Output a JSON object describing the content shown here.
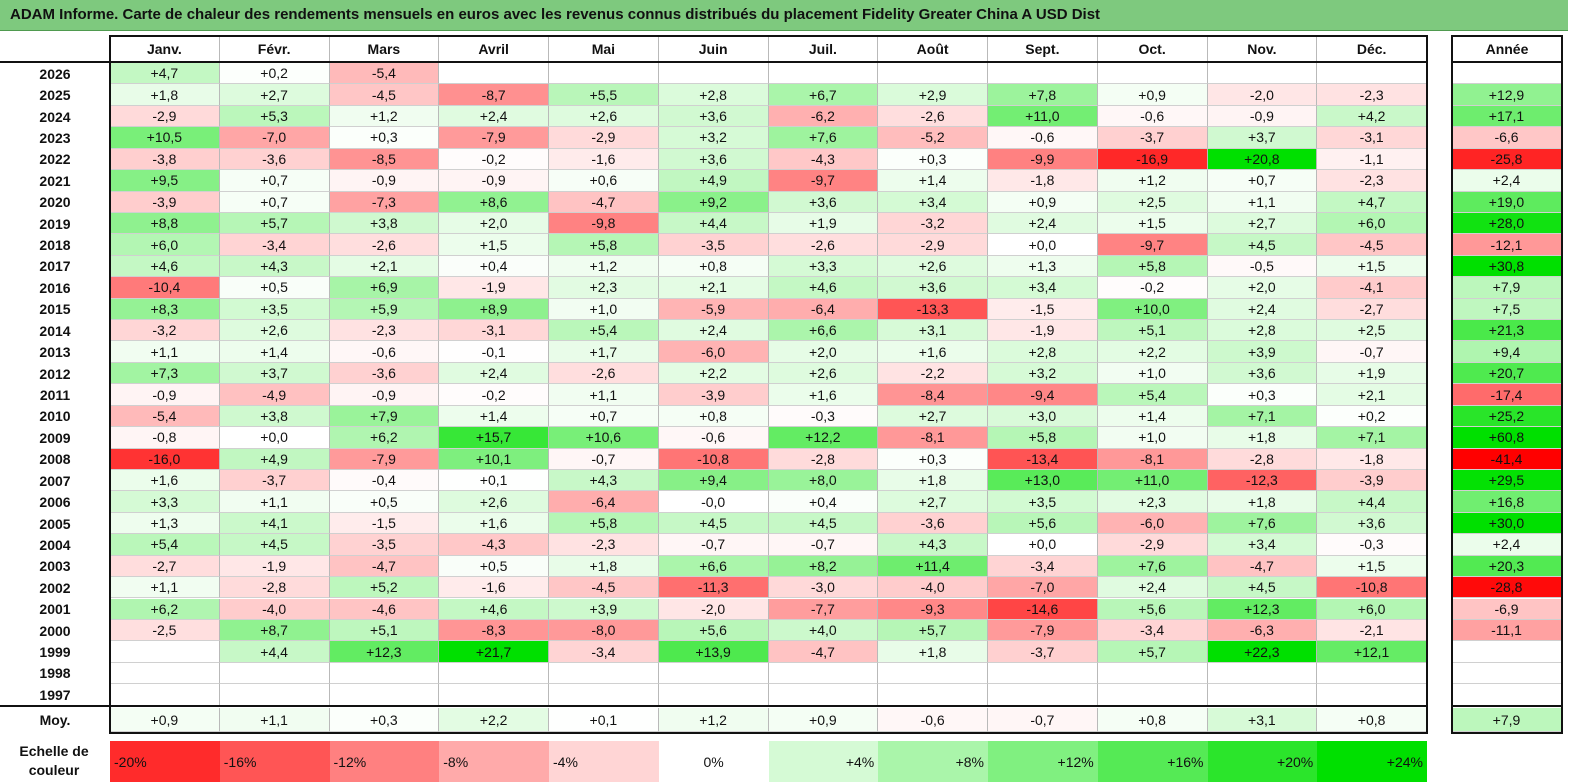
{
  "title": "ADAM Informe. Carte de chaleur des rendements mensuels en euros avec les revenus connus distribués du placement Fidelity Greater China A USD Dist",
  "chart_data": {
    "type": "heatmap",
    "months": [
      "Janv.",
      "Févr.",
      "Mars",
      "Avril",
      "Mai",
      "Juin",
      "Juil.",
      "Août",
      "Sept.",
      "Oct.",
      "Nov.",
      "Déc."
    ],
    "year_label": "Année",
    "avg_label": "Moy.",
    "rows": [
      {
        "year": "2026",
        "values": [
          "+4,7",
          "+0,2",
          "-5,4",
          "",
          "",
          "",
          "",
          "",
          "",
          "",
          "",
          ""
        ],
        "annual": ""
      },
      {
        "year": "2025",
        "values": [
          "+1,8",
          "+2,7",
          "-4,5",
          "-8,7",
          "+5,5",
          "+2,8",
          "+6,7",
          "+2,9",
          "+7,8",
          "+0,9",
          "-2,0",
          "-2,3"
        ],
        "annual": "+12,9"
      },
      {
        "year": "2024",
        "values": [
          "-2,9",
          "+5,3",
          "+1,2",
          "+2,4",
          "+2,6",
          "+3,6",
          "-6,2",
          "-2,6",
          "+11,0",
          "-0,6",
          "-0,9",
          "+4,2"
        ],
        "annual": "+17,1"
      },
      {
        "year": "2023",
        "values": [
          "+10,5",
          "-7,0",
          "+0,3",
          "-7,9",
          "-2,9",
          "+3,2",
          "+7,6",
          "-5,2",
          "-0,6",
          "-3,7",
          "+3,7",
          "-3,1"
        ],
        "annual": "-6,6"
      },
      {
        "year": "2022",
        "values": [
          "-3,8",
          "-3,6",
          "-8,5",
          "-0,2",
          "-1,6",
          "+3,6",
          "-4,3",
          "+0,3",
          "-9,9",
          "-16,9",
          "+20,8",
          "-1,1"
        ],
        "annual": "-25,8"
      },
      {
        "year": "2021",
        "values": [
          "+9,5",
          "+0,7",
          "-0,9",
          "-0,9",
          "+0,6",
          "+4,9",
          "-9,7",
          "+1,4",
          "-1,8",
          "+1,2",
          "+0,7",
          "-2,3"
        ],
        "annual": "+2,4"
      },
      {
        "year": "2020",
        "values": [
          "-3,9",
          "+0,7",
          "-7,3",
          "+8,6",
          "-4,7",
          "+9,2",
          "+3,6",
          "+3,4",
          "+0,9",
          "+2,5",
          "+1,1",
          "+4,7"
        ],
        "annual": "+19,0"
      },
      {
        "year": "2019",
        "values": [
          "+8,8",
          "+5,7",
          "+3,8",
          "+2,0",
          "-9,8",
          "+4,4",
          "+1,9",
          "-3,2",
          "+2,4",
          "+1,5",
          "+2,7",
          "+6,0"
        ],
        "annual": "+28,0"
      },
      {
        "year": "2018",
        "values": [
          "+6,0",
          "-3,4",
          "-2,6",
          "+1,5",
          "+5,8",
          "-3,5",
          "-2,6",
          "-2,9",
          "+0,0",
          "-9,7",
          "+4,5",
          "-4,5"
        ],
        "annual": "-12,1"
      },
      {
        "year": "2017",
        "values": [
          "+4,6",
          "+4,3",
          "+2,1",
          "+0,4",
          "+1,2",
          "+0,8",
          "+3,3",
          "+2,6",
          "+1,3",
          "+5,8",
          "-0,5",
          "+1,5"
        ],
        "annual": "+30,8"
      },
      {
        "year": "2016",
        "values": [
          "-10,4",
          "+0,5",
          "+6,9",
          "-1,9",
          "+2,3",
          "+2,1",
          "+4,6",
          "+3,6",
          "+3,4",
          "-0,2",
          "+2,0",
          "-4,1"
        ],
        "annual": "+7,9"
      },
      {
        "year": "2015",
        "values": [
          "+8,3",
          "+3,5",
          "+5,9",
          "+8,9",
          "+1,0",
          "-5,9",
          "-6,4",
          "-13,3",
          "-1,5",
          "+10,0",
          "+2,4",
          "-2,7"
        ],
        "annual": "+7,5"
      },
      {
        "year": "2014",
        "values": [
          "-3,2",
          "+2,6",
          "-2,3",
          "-3,1",
          "+5,4",
          "+2,4",
          "+6,6",
          "+3,1",
          "-1,9",
          "+5,1",
          "+2,8",
          "+2,5"
        ],
        "annual": "+21,3"
      },
      {
        "year": "2013",
        "values": [
          "+1,1",
          "+1,4",
          "-0,6",
          "-0,1",
          "+1,7",
          "-6,0",
          "+2,0",
          "+1,6",
          "+2,8",
          "+2,2",
          "+3,9",
          "-0,7"
        ],
        "annual": "+9,4"
      },
      {
        "year": "2012",
        "values": [
          "+7,3",
          "+3,7",
          "-3,6",
          "+2,4",
          "-2,6",
          "+2,2",
          "+2,6",
          "-2,2",
          "+3,2",
          "+1,0",
          "+3,6",
          "+1,9"
        ],
        "annual": "+20,7"
      },
      {
        "year": "2011",
        "values": [
          "-0,9",
          "-4,9",
          "-0,9",
          "-0,2",
          "+1,1",
          "-3,9",
          "+1,6",
          "-8,4",
          "-9,4",
          "+5,4",
          "+0,3",
          "+2,1"
        ],
        "annual": "-17,4"
      },
      {
        "year": "2010",
        "values": [
          "-5,4",
          "+3,8",
          "+7,9",
          "+1,4",
          "+0,7",
          "+0,8",
          "-0,3",
          "+2,7",
          "+3,0",
          "+1,4",
          "+7,1",
          "+0,2"
        ],
        "annual": "+25,2"
      },
      {
        "year": "2009",
        "values": [
          "-0,8",
          "+0,0",
          "+6,2",
          "+15,7",
          "+10,6",
          "-0,6",
          "+12,2",
          "-8,1",
          "+5,8",
          "+1,0",
          "+1,8",
          "+7,1"
        ],
        "annual": "+60,8"
      },
      {
        "year": "2008",
        "values": [
          "-16,0",
          "+4,9",
          "-7,9",
          "+10,1",
          "-0,7",
          "-10,8",
          "-2,8",
          "+0,3",
          "-13,4",
          "-8,1",
          "-2,8",
          "-1,8"
        ],
        "annual": "-41,4"
      },
      {
        "year": "2007",
        "values": [
          "+1,6",
          "-3,7",
          "-0,4",
          "+0,1",
          "+4,3",
          "+9,4",
          "+8,0",
          "+1,8",
          "+13,0",
          "+11,0",
          "-12,3",
          "-3,9"
        ],
        "annual": "+29,5"
      },
      {
        "year": "2006",
        "values": [
          "+3,3",
          "+1,1",
          "+0,5",
          "+2,6",
          "-6,4",
          "-0,0",
          "+0,4",
          "+2,7",
          "+3,5",
          "+2,3",
          "+1,8",
          "+4,4"
        ],
        "annual": "+16,8"
      },
      {
        "year": "2005",
        "values": [
          "+1,3",
          "+4,1",
          "-1,5",
          "+1,6",
          "+5,8",
          "+4,5",
          "+4,5",
          "-3,6",
          "+5,6",
          "-6,0",
          "+7,6",
          "+3,6"
        ],
        "annual": "+30,0"
      },
      {
        "year": "2004",
        "values": [
          "+5,4",
          "+4,5",
          "-3,5",
          "-4,3",
          "-2,3",
          "-0,7",
          "-0,7",
          "+4,3",
          "+0,0",
          "-2,9",
          "+3,4",
          "-0,3"
        ],
        "annual": "+2,4"
      },
      {
        "year": "2003",
        "values": [
          "-2,7",
          "-1,9",
          "-4,7",
          "+0,5",
          "+1,8",
          "+6,6",
          "+8,2",
          "+11,4",
          "-3,4",
          "+7,6",
          "-4,7",
          "+1,5"
        ],
        "annual": "+20,3"
      },
      {
        "year": "2002",
        "values": [
          "+1,1",
          "-2,8",
          "+5,2",
          "-1,6",
          "-4,5",
          "-11,3",
          "-3,0",
          "-4,0",
          "-7,0",
          "+2,4",
          "+4,5",
          "-10,8"
        ],
        "annual": "-28,8"
      },
      {
        "year": "2001",
        "values": [
          "+6,2",
          "-4,0",
          "-4,6",
          "+4,6",
          "+3,9",
          "-2,0",
          "-7,7",
          "-9,3",
          "-14,6",
          "+5,6",
          "+12,3",
          "+6,0"
        ],
        "annual": "-6,9"
      },
      {
        "year": "2000",
        "values": [
          "-2,5",
          "+8,7",
          "+5,1",
          "-8,3",
          "-8,0",
          "+5,6",
          "+4,0",
          "+5,7",
          "-7,9",
          "-3,4",
          "-6,3",
          "-2,1"
        ],
        "annual": "-11,1"
      },
      {
        "year": "1999",
        "values": [
          "",
          "+4,4",
          "+12,3",
          "+21,7",
          "-3,4",
          "+13,9",
          "-4,7",
          "+1,8",
          "-3,7",
          "+5,7",
          "+22,3",
          "+12,1"
        ],
        "annual": ""
      },
      {
        "year": "1998",
        "values": [
          "",
          "",
          "",
          "",
          "",
          "",
          "",
          "",
          "",
          "",
          "",
          ""
        ],
        "annual": ""
      },
      {
        "year": "1997",
        "values": [
          "",
          "",
          "",
          "",
          "",
          "",
          "",
          "",
          "",
          "",
          "",
          ""
        ],
        "annual": ""
      }
    ],
    "averages": [
      "+0,9",
      "+1,1",
      "+0,3",
      "+2,2",
      "+0,1",
      "+1,2",
      "+0,9",
      "-0,6",
      "-0,7",
      "+0,8",
      "+3,1",
      "+0,8"
    ],
    "average_annual": "+7,9",
    "scale": {
      "label_line1": "Echelle de",
      "label_line2": "couleur",
      "items": [
        {
          "label": "-20%",
          "value": -20
        },
        {
          "label": "-16%",
          "value": -16
        },
        {
          "label": "-12%",
          "value": -12
        },
        {
          "label": "-8%",
          "value": -8
        },
        {
          "label": "-4%",
          "value": -4
        },
        {
          "label": "0%",
          "value": 0
        },
        {
          "label": "+4%",
          "value": 4
        },
        {
          "label": "+8%",
          "value": 8
        },
        {
          "label": "+12%",
          "value": 12
        },
        {
          "label": "+16%",
          "value": 16
        },
        {
          "label": "+20%",
          "value": 20
        },
        {
          "label": "+24%",
          "value": 24
        }
      ]
    },
    "colors": {
      "negative_max": "#ff0000",
      "positive_max": "#00e000",
      "neutral": "#ffffff",
      "title_bar": "#7ec97e"
    }
  }
}
